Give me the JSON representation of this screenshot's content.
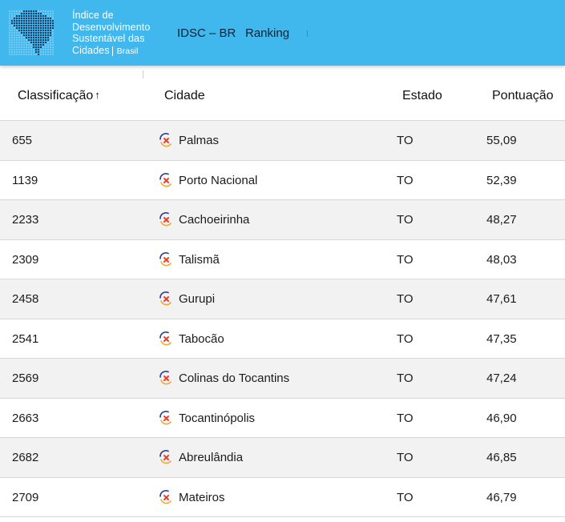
{
  "header": {
    "logo_lines": [
      "Índice de",
      "Desenvolvimento",
      "Sustentável das",
      "Cidades"
    ],
    "logo_sub": "Brasil",
    "nav_idsc": "IDSC – BR",
    "nav_ranking": "Ranking",
    "colors": {
      "bar": "#40b8ee",
      "nav_text": "#0d2235"
    }
  },
  "table": {
    "columns": {
      "rank": "Classificação",
      "rank_sort": "↑",
      "city": "Cidade",
      "state": "Estado",
      "score": "Pontuação"
    },
    "city_icon": "city-marker-icon",
    "rows": [
      {
        "rank": "655",
        "city": "Palmas",
        "state": "TO",
        "score": "55,09"
      },
      {
        "rank": "1139",
        "city": "Porto Nacional",
        "state": "TO",
        "score": "52,39"
      },
      {
        "rank": "2233",
        "city": "Cachoeirinha",
        "state": "TO",
        "score": "48,27"
      },
      {
        "rank": "2309",
        "city": "Talismã",
        "state": "TO",
        "score": "48,03"
      },
      {
        "rank": "2458",
        "city": "Gurupi",
        "state": "TO",
        "score": "47,61"
      },
      {
        "rank": "2541",
        "city": "Tabocão",
        "state": "TO",
        "score": "47,35"
      },
      {
        "rank": "2569",
        "city": "Colinas do Tocantins",
        "state": "TO",
        "score": "47,24"
      },
      {
        "rank": "2663",
        "city": "Tocantinópolis",
        "state": "TO",
        "score": "46,90"
      },
      {
        "rank": "2682",
        "city": "Abreulândia",
        "state": "TO",
        "score": "46,85"
      },
      {
        "rank": "2709",
        "city": "Mateiros",
        "state": "TO",
        "score": "46,79"
      }
    ]
  }
}
